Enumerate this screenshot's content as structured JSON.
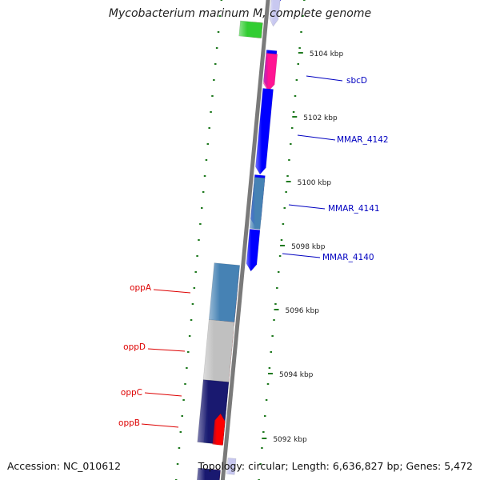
{
  "title": "Mycobacterium marinum M, complete genome",
  "accession": "Accession: NC_010612",
  "topology": "Topology: circular; Length: 6,636,827 bp; Genes: 5,472",
  "colors": {
    "backbone": "#7a7a7a",
    "tick": "#1f7a1f",
    "label_reverse_strand": "#dd0000",
    "label_forward_strand": "#0000c0",
    "gene_blue": "#0000ff",
    "gene_red": "#ff0000",
    "gene_steelblue": "#4682b4",
    "gene_magenta": "#ff1493",
    "gene_grey": "#c0c0c0",
    "gene_navy": "#191970",
    "gene_green": "#32cd32",
    "gene_lavender": "#c8c8f0"
  },
  "scale_labels": [
    "5104 kbp",
    "5102 kbp",
    "5100 kbp",
    "5098 kbp",
    "5096 kbp",
    "5094 kbp",
    "5092 kbp"
  ],
  "gene_labels": [
    {
      "text": "sbcD",
      "strand": "forward"
    },
    {
      "text": "MMAR_4142",
      "strand": "forward"
    },
    {
      "text": "MMAR_4141",
      "strand": "forward"
    },
    {
      "text": "MMAR_4140",
      "strand": "forward"
    },
    {
      "text": "oppA",
      "strand": "reverse"
    },
    {
      "text": "oppD",
      "strand": "reverse"
    },
    {
      "text": "oppC",
      "strand": "reverse"
    },
    {
      "text": "oppB",
      "strand": "reverse"
    }
  ]
}
